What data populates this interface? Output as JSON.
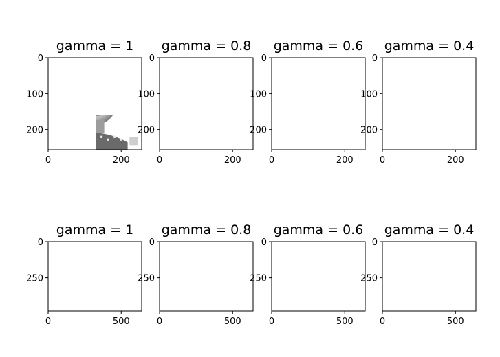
{
  "figure": {
    "background": "#ffffff"
  },
  "chart_data": [
    {
      "type": "image",
      "title": "gamma = 1",
      "image": "portrait-grayscale",
      "gamma": 1,
      "xticks": [
        "0",
        "200"
      ],
      "yticks": [
        "0",
        "100",
        "200"
      ],
      "xlim": [
        0,
        256
      ],
      "ylim": [
        256,
        0
      ],
      "x_tick_values": [
        0,
        200
      ],
      "y_tick_values": [
        0,
        100,
        200
      ]
    },
    {
      "type": "image",
      "title": "gamma = 0.8",
      "image": "portrait-grayscale",
      "gamma": 0.8,
      "xticks": [
        "0",
        "200"
      ],
      "yticks": [
        "0",
        "100",
        "200"
      ],
      "xlim": [
        0,
        256
      ],
      "ylim": [
        256,
        0
      ],
      "x_tick_values": [
        0,
        200
      ],
      "y_tick_values": [
        0,
        100,
        200
      ]
    },
    {
      "type": "image",
      "title": "gamma = 0.6",
      "image": "portrait-grayscale",
      "gamma": 0.6,
      "xticks": [
        "0",
        "200"
      ],
      "yticks": [
        "0",
        "100",
        "200"
      ],
      "xlim": [
        0,
        256
      ],
      "ylim": [
        256,
        0
      ],
      "x_tick_values": [
        0,
        200
      ],
      "y_tick_values": [
        0,
        100,
        200
      ]
    },
    {
      "type": "image",
      "title": "gamma = 0.4",
      "image": "portrait-grayscale",
      "gamma": 0.4,
      "xticks": [
        "0",
        "200"
      ],
      "yticks": [
        "0",
        "100",
        "200"
      ],
      "xlim": [
        0,
        256
      ],
      "ylim": [
        256,
        0
      ],
      "x_tick_values": [
        0,
        200
      ],
      "y_tick_values": [
        0,
        100,
        200
      ]
    },
    {
      "type": "image",
      "title": "gamma = 1",
      "image": "street-scene-color",
      "gamma": 1,
      "xticks": [
        "0",
        "500"
      ],
      "yticks": [
        "0",
        "250"
      ],
      "xlim": [
        0,
        640
      ],
      "ylim": [
        480,
        0
      ],
      "x_tick_values": [
        0,
        500
      ],
      "y_tick_values": [
        0,
        250
      ]
    },
    {
      "type": "image",
      "title": "gamma = 0.8",
      "image": "street-scene-color",
      "gamma": 0.8,
      "xticks": [
        "0",
        "500"
      ],
      "yticks": [
        "0",
        "250"
      ],
      "xlim": [
        0,
        640
      ],
      "ylim": [
        480,
        0
      ],
      "x_tick_values": [
        0,
        500
      ],
      "y_tick_values": [
        0,
        250
      ]
    },
    {
      "type": "image",
      "title": "gamma = 0.6",
      "image": "street-scene-color",
      "gamma": 0.6,
      "xticks": [
        "0",
        "500"
      ],
      "yticks": [
        "0",
        "250"
      ],
      "xlim": [
        0,
        640
      ],
      "ylim": [
        480,
        0
      ],
      "x_tick_values": [
        0,
        500
      ],
      "y_tick_values": [
        0,
        250
      ]
    },
    {
      "type": "image",
      "title": "gamma = 0.4",
      "image": "street-scene-color",
      "gamma": 0.4,
      "xticks": [
        "0",
        "500"
      ],
      "yticks": [
        "0",
        "250"
      ],
      "xlim": [
        0,
        640
      ],
      "ylim": [
        480,
        0
      ],
      "x_tick_values": [
        0,
        500
      ],
      "y_tick_values": [
        0,
        250
      ]
    }
  ]
}
